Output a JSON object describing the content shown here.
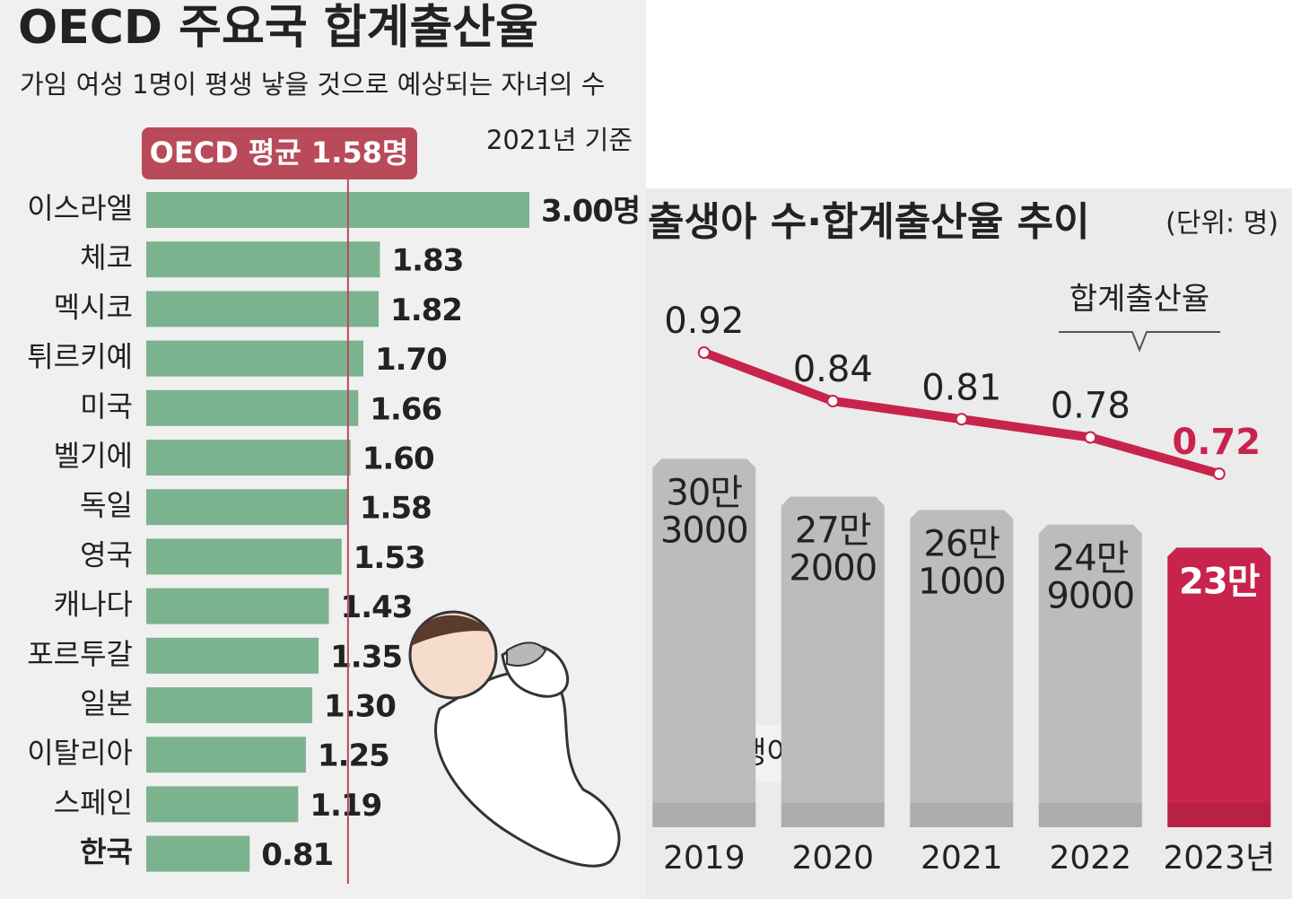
{
  "chart_data": [
    {
      "type": "bar",
      "orientation": "horizontal",
      "title": "OECD 주요국 합계출산율",
      "subtitle": "가임 여성 1명이 평생 낳을 것으로 예상되는 자녀의 수",
      "note": "2021년 기준",
      "reference": {
        "value": 1.58,
        "label": "OECD 평균 1.58명",
        "color": "#b94a5a"
      },
      "categories": [
        "이스라엘",
        "체코",
        "멕시코",
        "튀르키예",
        "미국",
        "벨기에",
        "독일",
        "영국",
        "캐나다",
        "포르투갈",
        "일본",
        "이탈리아",
        "스페인",
        "한국"
      ],
      "values": [
        3.0,
        1.83,
        1.82,
        1.7,
        1.66,
        1.6,
        1.58,
        1.53,
        1.43,
        1.35,
        1.3,
        1.25,
        1.19,
        0.81
      ],
      "value_labels": [
        "3.00명",
        "1.83",
        "1.82",
        "1.70",
        "1.66",
        "1.60",
        "1.58",
        "1.53",
        "1.43",
        "1.35",
        "1.30",
        "1.25",
        "1.19",
        "0.81"
      ],
      "color": "#7bb38f",
      "xlim": [
        0,
        3.0
      ]
    },
    {
      "type": "combo",
      "title": "출생아 수·합계출산율 추이",
      "unit": "(단위: 명)",
      "categories": [
        "2019",
        "2020",
        "2021",
        "2022",
        "2023년"
      ],
      "ylim": [
        0,
        400000
      ],
      "y2lim": [
        0.6,
        1.0
      ],
      "series": [
        {
          "name": "출생아 수",
          "type": "bar",
          "values": [
            303000,
            272000,
            261000,
            249000,
            230000
          ],
          "value_labels": [
            "30만 3000",
            "27만 2000",
            "26만 1000",
            "24만 9000",
            "23만"
          ],
          "colors": [
            "#bcbcbc",
            "#bcbcbc",
            "#bcbcbc",
            "#bcbcbc",
            "#c8234c"
          ]
        },
        {
          "name": "합계출산율",
          "type": "line",
          "axis": "y2",
          "values": [
            0.92,
            0.84,
            0.81,
            0.78,
            0.72
          ],
          "color": "#c8234c",
          "label_colors": [
            "#222222",
            "#222222",
            "#222222",
            "#222222",
            "#c8234c"
          ]
        }
      ]
    }
  ]
}
